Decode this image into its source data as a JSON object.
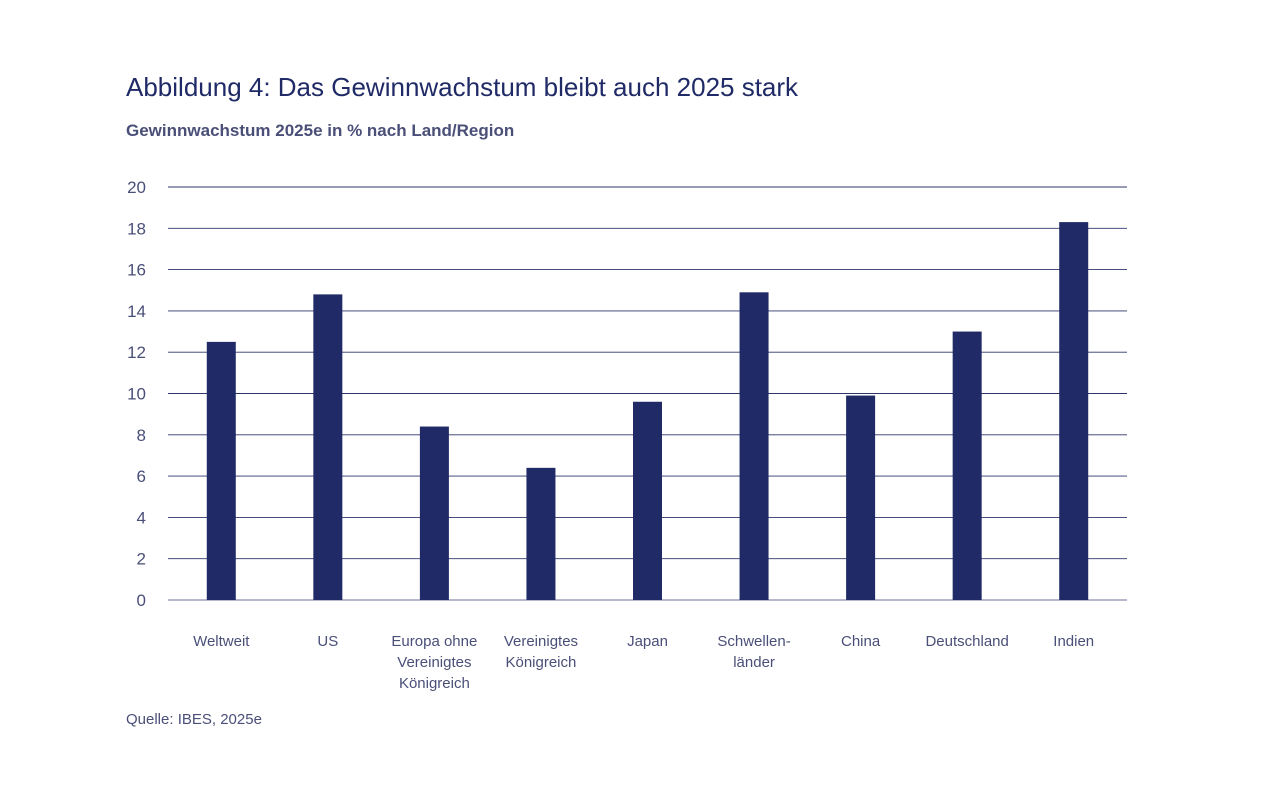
{
  "header": {
    "title": "Abbildung 4: Das Gewinnwachstum bleibt auch 2025 stark",
    "subtitle": "Gewinnwachstum 2025e in % nach Land/Region"
  },
  "footer": {
    "source": "Quelle: IBES, 2025e"
  },
  "chart_data": {
    "type": "bar",
    "categories": [
      [
        "Weltweit"
      ],
      [
        "US"
      ],
      [
        "Europa ohne",
        "Vereinigtes",
        "Königreich"
      ],
      [
        "Vereinigtes",
        "Königreich"
      ],
      [
        "Japan"
      ],
      [
        "Schwellen-",
        "länder"
      ],
      [
        "China"
      ],
      [
        "Deutschland"
      ],
      [
        "Indien"
      ]
    ],
    "values": [
      12.5,
      14.8,
      8.4,
      6.4,
      9.6,
      14.9,
      9.9,
      13.0,
      18.3
    ],
    "ylim": [
      0,
      20
    ],
    "yticks": [
      0,
      2,
      4,
      6,
      8,
      10,
      12,
      14,
      16,
      18,
      20
    ],
    "grid": true,
    "bar_color": "#1f2a66",
    "grid_color": "#2e356b"
  }
}
